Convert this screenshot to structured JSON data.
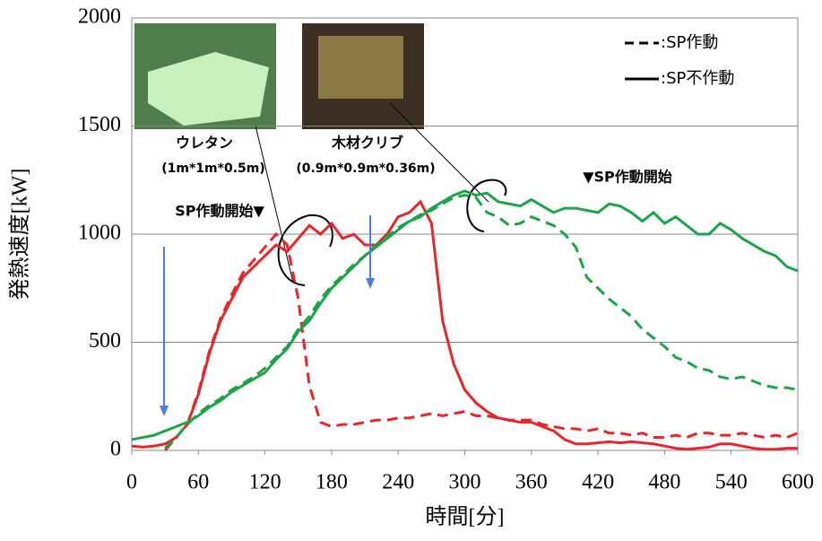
{
  "chart_data": {
    "type": "line",
    "x_label": "時間[分]",
    "y_label": "発熱速度[kW]",
    "x": [
      0,
      10,
      20,
      30,
      40,
      50,
      60,
      70,
      80,
      90,
      100,
      110,
      120,
      130,
      140,
      150,
      160,
      170,
      180,
      190,
      200,
      210,
      220,
      230,
      240,
      250,
      260,
      270,
      280,
      290,
      300,
      310,
      320,
      330,
      340,
      350,
      360,
      370,
      380,
      390,
      400,
      410,
      420,
      430,
      440,
      450,
      460,
      470,
      480,
      490,
      500,
      510,
      520,
      530,
      540,
      550,
      560,
      570,
      580,
      590,
      600
    ],
    "series": [
      {
        "color": "#e8262a",
        "dash": false,
        "values": [
          20,
          15,
          20,
          30,
          60,
          120,
          260,
          450,
          600,
          700,
          800,
          850,
          900,
          950,
          920,
          980,
          1040,
          1000,
          1050,
          980,
          1000,
          950,
          950,
          1000,
          1080,
          1100,
          1150,
          1050,
          600,
          400,
          280,
          220,
          180,
          150,
          140,
          130,
          130,
          110,
          90,
          50,
          30,
          30,
          35,
          40,
          35,
          40,
          35,
          30,
          20,
          10,
          5,
          10,
          15,
          30,
          30,
          20,
          10,
          5,
          5,
          10,
          10
        ]
      },
      {
        "color": "#e8262a",
        "dash": true,
        "values": [
          null,
          null,
          null,
          0,
          60,
          120,
          270,
          460,
          610,
          720,
          820,
          880,
          940,
          1000,
          950,
          700,
          300,
          130,
          110,
          120,
          120,
          130,
          140,
          140,
          150,
          150,
          160,
          170,
          160,
          170,
          180,
          160,
          160,
          150,
          140,
          140,
          140,
          120,
          110,
          100,
          100,
          90,
          100,
          80,
          80,
          70,
          80,
          60,
          60,
          70,
          60,
          80,
          80,
          70,
          70,
          80,
          70,
          60,
          70,
          60,
          80
        ]
      },
      {
        "color": "#1ea34a",
        "dash": false,
        "values": [
          50,
          60,
          70,
          90,
          110,
          130,
          160,
          200,
          230,
          270,
          300,
          330,
          360,
          420,
          470,
          550,
          600,
          680,
          750,
          800,
          850,
          900,
          940,
          980,
          1020,
          1060,
          1080,
          1120,
          1150,
          1180,
          1200,
          1180,
          1190,
          1150,
          1140,
          1130,
          1160,
          1130,
          1100,
          1120,
          1120,
          1110,
          1100,
          1140,
          1130,
          1100,
          1060,
          1100,
          1050,
          1080,
          1040,
          1000,
          1000,
          1050,
          1020,
          980,
          950,
          920,
          900,
          850,
          830
        ]
      },
      {
        "color": "#1ea34a",
        "dash": true,
        "values": [
          null,
          null,
          null,
          10,
          60,
          120,
          170,
          210,
          240,
          280,
          310,
          340,
          380,
          430,
          480,
          560,
          620,
          700,
          760,
          810,
          860,
          900,
          950,
          990,
          1030,
          1060,
          1090,
          1110,
          1140,
          1170,
          1180,
          1170,
          1100,
          1080,
          1040,
          1050,
          1080,
          1060,
          1040,
          1000,
          940,
          800,
          750,
          700,
          660,
          620,
          560,
          520,
          480,
          430,
          410,
          380,
          370,
          340,
          330,
          340,
          320,
          300,
          290,
          290,
          280
        ]
      }
    ],
    "xlim": [
      0,
      600
    ],
    "xticks": [
      0,
      60,
      120,
      180,
      240,
      300,
      360,
      420,
      480,
      540,
      600
    ],
    "ylim": [
      0,
      2000
    ],
    "yticks": [
      0,
      500,
      1000,
      1500,
      2000
    ],
    "grid": true,
    "legend": {
      "position": "upper right",
      "color": "#000000",
      "entries": [
        {
          "label": ":SP作動",
          "dash": true
        },
        {
          "label": ":SP不作動",
          "dash": false
        }
      ]
    },
    "annotations": [
      "ウレタン",
      "(1m*1m*0.5m)",
      "木材クリブ",
      "(0.9m*0.9m*0.36m)",
      "SP作動開始▼",
      "▼SP作動開始"
    ]
  }
}
